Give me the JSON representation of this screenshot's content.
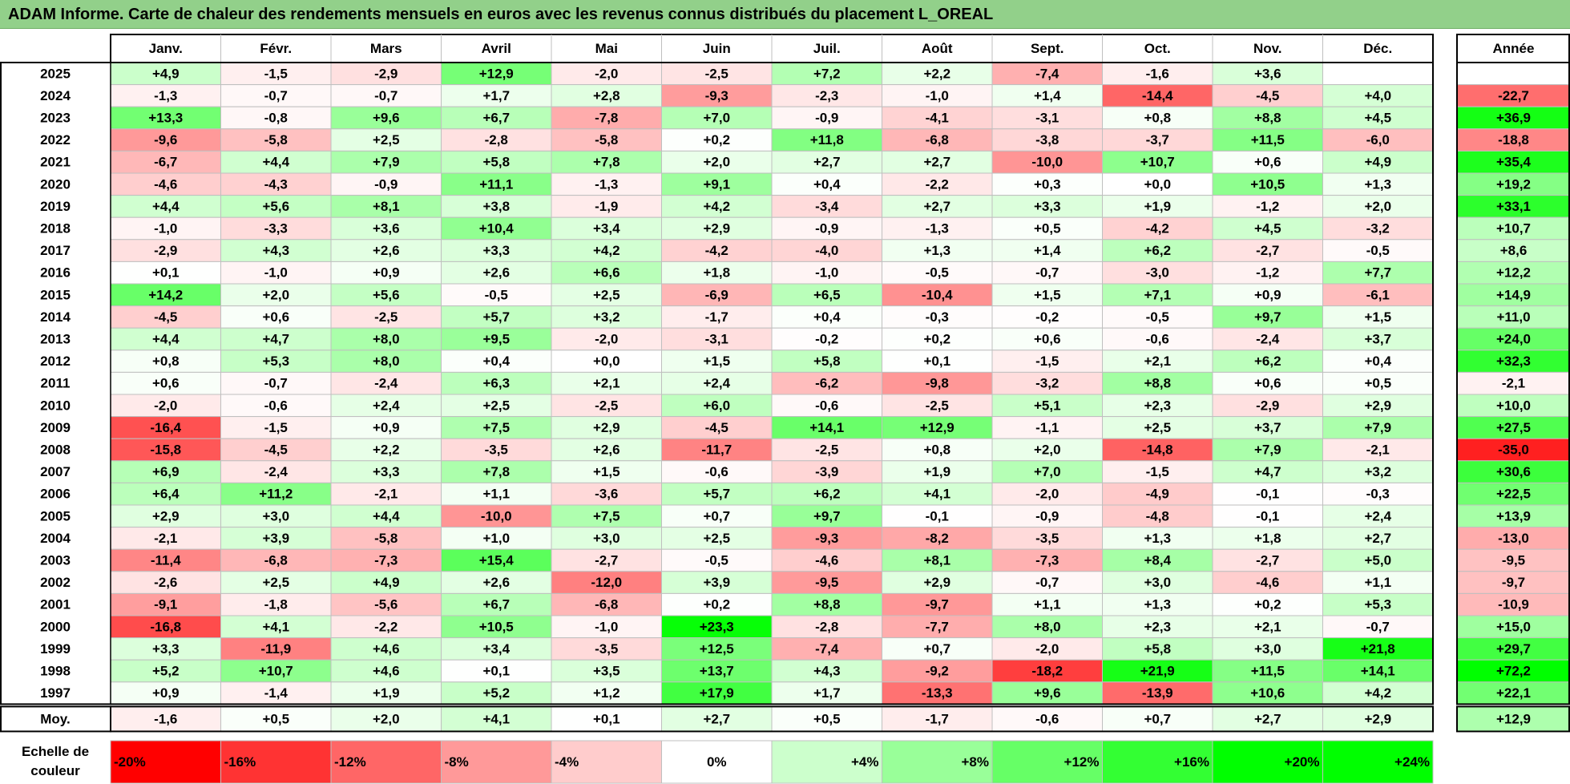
{
  "title": "ADAM Informe. Carte de chaleur des rendements mensuels en euros avec les revenus connus distribués du placement L_OREAL",
  "colors": {
    "neg_max": "#ff0000",
    "pos_max": "#00ff00",
    "neutral": "#ffffff",
    "grid": "#bfbfbf",
    "title_bg": "#92d08a"
  },
  "chart_data": {
    "type": "heatmap",
    "months": [
      "Janv.",
      "Févr.",
      "Mars",
      "Avril",
      "Mai",
      "Juin",
      "Juil.",
      "Août",
      "Sept.",
      "Oct.",
      "Nov.",
      "Déc."
    ],
    "annual_label": "Année",
    "average_label": "Moy.",
    "rows": [
      {
        "year": "2025",
        "values": [
          "+4,9",
          "-1,5",
          "-2,9",
          "+12,9",
          "-2,0",
          "-2,5",
          "+7,2",
          "+2,2",
          "-7,4",
          "-1,6",
          "+3,6",
          ""
        ],
        "annual": ""
      },
      {
        "year": "2024",
        "values": [
          "-1,3",
          "-0,7",
          "-0,7",
          "+1,7",
          "+2,8",
          "-9,3",
          "-2,3",
          "-1,0",
          "+1,4",
          "-14,4",
          "-4,5",
          "+4,0"
        ],
        "annual": "-22,7"
      },
      {
        "year": "2023",
        "values": [
          "+13,3",
          "-0,8",
          "+9,6",
          "+6,7",
          "-7,8",
          "+7,0",
          "-0,9",
          "-4,1",
          "-3,1",
          "+0,8",
          "+8,8",
          "+4,5"
        ],
        "annual": "+36,9"
      },
      {
        "year": "2022",
        "values": [
          "-9,6",
          "-5,8",
          "+2,5",
          "-2,8",
          "-5,8",
          "+0,2",
          "+11,8",
          "-6,8",
          "-3,8",
          "-3,7",
          "+11,5",
          "-6,0"
        ],
        "annual": "-18,8"
      },
      {
        "year": "2021",
        "values": [
          "-6,7",
          "+4,4",
          "+7,9",
          "+5,8",
          "+7,8",
          "+2,0",
          "+2,7",
          "+2,7",
          "-10,0",
          "+10,7",
          "+0,6",
          "+4,9"
        ],
        "annual": "+35,4"
      },
      {
        "year": "2020",
        "values": [
          "-4,6",
          "-4,3",
          "-0,9",
          "+11,1",
          "-1,3",
          "+9,1",
          "+0,4",
          "-2,2",
          "+0,3",
          "+0,0",
          "+10,5",
          "+1,3"
        ],
        "annual": "+19,2"
      },
      {
        "year": "2019",
        "values": [
          "+4,4",
          "+5,6",
          "+8,1",
          "+3,8",
          "-1,9",
          "+4,2",
          "-3,4",
          "+2,7",
          "+3,3",
          "+1,9",
          "-1,2",
          "+2,0"
        ],
        "annual": "+33,1"
      },
      {
        "year": "2018",
        "values": [
          "-1,0",
          "-3,3",
          "+3,6",
          "+10,4",
          "+3,4",
          "+2,9",
          "-0,9",
          "-1,3",
          "+0,5",
          "-4,2",
          "+4,5",
          "-3,2"
        ],
        "annual": "+10,7"
      },
      {
        "year": "2017",
        "values": [
          "-2,9",
          "+4,3",
          "+2,6",
          "+3,3",
          "+4,2",
          "-4,2",
          "-4,0",
          "+1,3",
          "+1,4",
          "+6,2",
          "-2,7",
          "-0,5"
        ],
        "annual": "+8,6"
      },
      {
        "year": "2016",
        "values": [
          "+0,1",
          "-1,0",
          "+0,9",
          "+2,6",
          "+6,6",
          "+1,8",
          "-1,0",
          "-0,5",
          "-0,7",
          "-3,0",
          "-1,2",
          "+7,7"
        ],
        "annual": "+12,2"
      },
      {
        "year": "2015",
        "values": [
          "+14,2",
          "+2,0",
          "+5,6",
          "-0,5",
          "+2,5",
          "-6,9",
          "+6,5",
          "-10,4",
          "+1,5",
          "+7,1",
          "+0,9",
          "-6,1"
        ],
        "annual": "+14,9"
      },
      {
        "year": "2014",
        "values": [
          "-4,5",
          "+0,6",
          "-2,5",
          "+5,7",
          "+3,2",
          "-1,7",
          "+0,4",
          "-0,3",
          "-0,2",
          "-0,5",
          "+9,7",
          "+1,5"
        ],
        "annual": "+11,0"
      },
      {
        "year": "2013",
        "values": [
          "+4,4",
          "+4,7",
          "+8,0",
          "+9,5",
          "-2,0",
          "-3,1",
          "-0,2",
          "+0,2",
          "+0,6",
          "-0,6",
          "-2,4",
          "+3,7"
        ],
        "annual": "+24,0"
      },
      {
        "year": "2012",
        "values": [
          "+0,8",
          "+5,3",
          "+8,0",
          "+0,4",
          "+0,0",
          "+1,5",
          "+5,8",
          "+0,1",
          "-1,5",
          "+2,1",
          "+6,2",
          "+0,4"
        ],
        "annual": "+32,3"
      },
      {
        "year": "2011",
        "values": [
          "+0,6",
          "-0,7",
          "-2,4",
          "+6,3",
          "+2,1",
          "+2,4",
          "-6,2",
          "-9,8",
          "-3,2",
          "+8,8",
          "+0,6",
          "+0,5"
        ],
        "annual": "-2,1"
      },
      {
        "year": "2010",
        "values": [
          "-2,0",
          "-0,6",
          "+2,4",
          "+2,5",
          "-2,5",
          "+6,0",
          "-0,6",
          "-2,5",
          "+5,1",
          "+2,3",
          "-2,9",
          "+2,9"
        ],
        "annual": "+10,0"
      },
      {
        "year": "2009",
        "values": [
          "-16,4",
          "-1,5",
          "+0,9",
          "+7,5",
          "+2,9",
          "-4,5",
          "+14,1",
          "+12,9",
          "-1,1",
          "+2,5",
          "+3,7",
          "+7,9"
        ],
        "annual": "+27,5"
      },
      {
        "year": "2008",
        "values": [
          "-15,8",
          "-4,5",
          "+2,2",
          "-3,5",
          "+2,6",
          "-11,7",
          "-2,5",
          "+0,8",
          "+2,0",
          "-14,8",
          "+7,9",
          "-2,1"
        ],
        "annual": "-35,0"
      },
      {
        "year": "2007",
        "values": [
          "+6,9",
          "-2,4",
          "+3,3",
          "+7,8",
          "+1,5",
          "-0,6",
          "-3,9",
          "+1,9",
          "+7,0",
          "-1,5",
          "+4,7",
          "+3,2"
        ],
        "annual": "+30,6"
      },
      {
        "year": "2006",
        "values": [
          "+6,4",
          "+11,2",
          "-2,1",
          "+1,1",
          "-3,6",
          "+5,7",
          "+6,2",
          "+4,1",
          "-2,0",
          "-4,9",
          "-0,1",
          "-0,3"
        ],
        "annual": "+22,5"
      },
      {
        "year": "2005",
        "values": [
          "+2,9",
          "+3,0",
          "+4,4",
          "-10,0",
          "+7,5",
          "+0,7",
          "+9,7",
          "-0,1",
          "-0,9",
          "-4,8",
          "-0,1",
          "+2,4"
        ],
        "annual": "+13,9"
      },
      {
        "year": "2004",
        "values": [
          "-2,1",
          "+3,9",
          "-5,8",
          "+1,0",
          "+3,0",
          "+2,5",
          "-9,3",
          "-8,2",
          "-3,5",
          "+1,3",
          "+1,8",
          "+2,7"
        ],
        "annual": "-13,0"
      },
      {
        "year": "2003",
        "values": [
          "-11,4",
          "-6,8",
          "-7,3",
          "+15,4",
          "-2,7",
          "-0,5",
          "-4,6",
          "+8,1",
          "-7,3",
          "+8,4",
          "-2,7",
          "+5,0"
        ],
        "annual": "-9,5"
      },
      {
        "year": "2002",
        "values": [
          "-2,6",
          "+2,5",
          "+4,9",
          "+2,6",
          "-12,0",
          "+3,9",
          "-9,5",
          "+2,9",
          "-0,7",
          "+3,0",
          "-4,6",
          "+1,1"
        ],
        "annual": "-9,7"
      },
      {
        "year": "2001",
        "values": [
          "-9,1",
          "-1,8",
          "-5,6",
          "+6,7",
          "-6,8",
          "+0,2",
          "+8,8",
          "-9,7",
          "+1,1",
          "+1,3",
          "+0,2",
          "+5,3"
        ],
        "annual": "-10,9"
      },
      {
        "year": "2000",
        "values": [
          "-16,8",
          "+4,1",
          "-2,2",
          "+10,5",
          "-1,0",
          "+23,3",
          "-2,8",
          "-7,7",
          "+8,0",
          "+2,3",
          "+2,1",
          "-0,7"
        ],
        "annual": "+15,0"
      },
      {
        "year": "1999",
        "values": [
          "+3,3",
          "-11,9",
          "+4,6",
          "+3,4",
          "-3,5",
          "+12,5",
          "-7,4",
          "+0,7",
          "-2,0",
          "+5,8",
          "+3,0",
          "+21,8"
        ],
        "annual": "+29,7"
      },
      {
        "year": "1998",
        "values": [
          "+5,2",
          "+10,7",
          "+4,6",
          "+0,1",
          "+3,5",
          "+13,7",
          "+4,3",
          "-9,2",
          "-18,2",
          "+21,9",
          "+11,5",
          "+14,1"
        ],
        "annual": "+72,2"
      },
      {
        "year": "1997",
        "values": [
          "+0,9",
          "-1,4",
          "+1,9",
          "+5,2",
          "+1,2",
          "+17,9",
          "+1,7",
          "-13,3",
          "+9,6",
          "-13,9",
          "+10,6",
          "+4,2"
        ],
        "annual": "+22,1"
      }
    ],
    "averages": {
      "values": [
        "-1,6",
        "+0,5",
        "+2,0",
        "+4,1",
        "+0,1",
        "+2,7",
        "+0,5",
        "-1,7",
        "-0,6",
        "+0,7",
        "+2,7",
        "+2,9"
      ],
      "annual": "+12,9"
    },
    "scale": {
      "title": "Echelle de couleur",
      "labels": [
        "-20%",
        "-16%",
        "-12%",
        "-8%",
        "-4%",
        "0%",
        "+4%",
        "+8%",
        "+12%",
        "+16%",
        "+20%",
        "+24%"
      ],
      "values": [
        -20,
        -16,
        -12,
        -8,
        -4,
        0,
        4,
        8,
        12,
        16,
        20,
        24
      ]
    }
  }
}
